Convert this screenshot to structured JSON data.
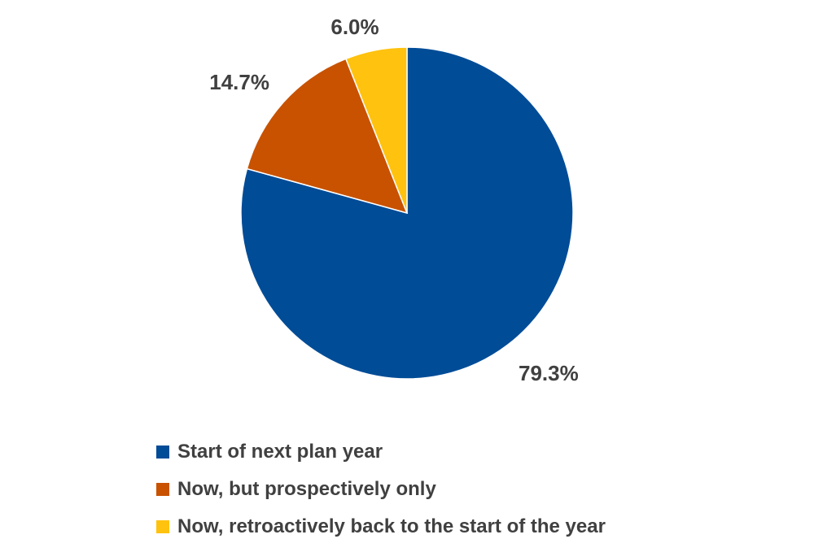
{
  "chart_data": {
    "type": "pie",
    "title": "",
    "slices": [
      {
        "label": "Start of next plan year",
        "value": 79.3,
        "display": "79.3%",
        "color": "#004C97"
      },
      {
        "label": "Now, but prospectively only",
        "value": 14.7,
        "display": "14.7%",
        "color": "#C85200"
      },
      {
        "label": "Now, retroactively back to the start of the year",
        "value": 6.0,
        "display": "6.0%",
        "color": "#FFC20E"
      }
    ],
    "legend_position": "bottom"
  },
  "legend": {
    "items": [
      {
        "label": "Start of next plan year",
        "color": "#004C97"
      },
      {
        "label": "Now, but prospectively only",
        "color": "#C85200"
      },
      {
        "label": "Now, retroactively back to the start of the year",
        "color": "#FFC20E"
      }
    ]
  }
}
